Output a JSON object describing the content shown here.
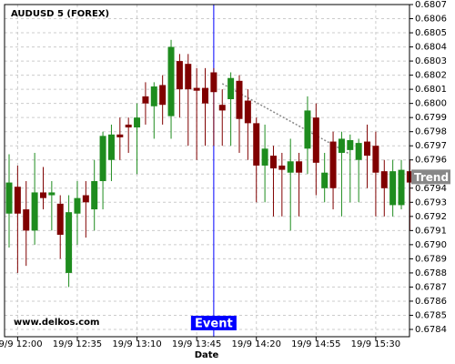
{
  "chart_data": {
    "type": "candlestick",
    "title": "AUDUSD 5 (FOREX)",
    "watermark": "www.delkos.com",
    "x_label": "Date",
    "categories": [
      null,
      "19/9 12:00",
      null,
      null,
      null,
      null,
      null,
      null,
      "19/9 12:35",
      null,
      null,
      null,
      null,
      null,
      null,
      "19/9 13:10",
      null,
      null,
      null,
      null,
      null,
      null,
      "19/9 13:45",
      null,
      null,
      null,
      null,
      null,
      null,
      "19/9 14:20",
      null,
      null,
      null,
      null,
      null,
      null,
      "19/9 14:55",
      null,
      null,
      null,
      null,
      null,
      null,
      "19/9 15:30",
      null,
      null,
      null,
      null
    ],
    "open": [
      0.67922,
      0.67941,
      0.67925,
      0.6791,
      0.67937,
      0.67935,
      0.67929,
      0.6788,
      0.67922,
      0.67935,
      0.67925,
      0.67945,
      0.6796,
      0.67978,
      0.67985,
      0.67983,
      0.68005,
      0.67998,
      0.68013,
      0.67991,
      0.6803,
      0.68028,
      0.68011,
      0.68011,
      0.68022,
      0.67999,
      0.68003,
      0.68016,
      0.68002,
      0.67986,
      0.67956,
      0.67963,
      0.67956,
      0.67951,
      0.67959,
      0.67968,
      0.6799,
      0.6794,
      0.67973,
      0.67965,
      0.67967,
      0.6796,
      0.67973,
      0.6797,
      0.67952,
      0.67928,
      0.67928,
      0.67952
    ],
    "high": [
      0.67964,
      0.67956,
      0.67945,
      0.67965,
      0.67955,
      0.67945,
      0.67935,
      0.67935,
      0.67945,
      0.67945,
      0.6796,
      0.6798,
      0.67985,
      0.6799,
      0.6799,
      0.68,
      0.68015,
      0.68015,
      0.6802,
      0.68045,
      0.68035,
      0.68035,
      0.68025,
      0.68025,
      0.68025,
      0.6801,
      0.68022,
      0.6802,
      0.6801,
      0.6799,
      0.67985,
      0.6797,
      0.67965,
      0.67975,
      0.67965,
      0.68005,
      0.68,
      0.67965,
      0.6798,
      0.6798,
      0.67978,
      0.67975,
      0.67985,
      0.6798,
      0.6796,
      0.6796,
      0.6796,
      0.6796
    ],
    "low": [
      0.67898,
      0.6788,
      0.67885,
      0.679,
      0.67925,
      0.6791,
      0.6789,
      0.6787,
      0.679,
      0.67905,
      0.6791,
      0.67925,
      0.67945,
      0.6796,
      0.67965,
      0.6795,
      0.67985,
      0.67975,
      0.67985,
      0.67975,
      0.6799,
      0.6797,
      0.6796,
      0.6797,
      0.6797,
      0.6797,
      0.6797,
      0.67965,
      0.6796,
      0.6793,
      0.6793,
      0.6792,
      0.6792,
      0.6791,
      0.6792,
      0.6795,
      0.67935,
      0.6793,
      0.67925,
      0.6792,
      0.6793,
      0.6793,
      0.6794,
      0.6792,
      0.6792,
      0.6792,
      0.67925,
      0.6791
    ],
    "close": [
      0.67944,
      0.67922,
      0.6791,
      0.67937,
      0.67933,
      0.67937,
      0.67907,
      0.67923,
      0.67933,
      0.6793,
      0.67945,
      0.67977,
      0.67978,
      0.67976,
      0.67983,
      0.6799,
      0.68,
      0.68012,
      0.67999,
      0.6804,
      0.6801,
      0.6801,
      0.68009,
      0.68,
      0.68008,
      0.67995,
      0.68018,
      0.67989,
      0.67986,
      0.67956,
      0.67968,
      0.67954,
      0.67953,
      0.67959,
      0.67951,
      0.67995,
      0.67958,
      0.67951,
      0.6794,
      0.67975,
      0.67974,
      0.67972,
      0.67963,
      0.67951,
      0.6794,
      0.67952,
      0.67953,
      0.67944
    ],
    "up_color": "#1e8c1e",
    "down_color": "#800000",
    "ylim": [
      0.6784,
      0.6807
    ],
    "yticks": [
      0.6784,
      0.6785,
      0.6786,
      0.6787,
      0.6788,
      0.6789,
      {
        "value": 0.679,
        "label": "0.6790"
      },
      0.6791,
      0.6792,
      0.6793,
      0.6794,
      0.6795,
      0.6796,
      0.6797,
      0.6798,
      0.6799,
      {
        "value": 0.68,
        "label": "0.6800"
      },
      0.6801,
      0.6802,
      0.6803,
      0.6804,
      0.6805,
      0.6806,
      0.6807
    ],
    "grid": true,
    "event": {
      "label": "Event",
      "index": 24,
      "color": "#0000ff"
    },
    "trend": {
      "label": "Trend",
      "value": 0.67948,
      "points": [
        {
          "x": 25,
          "y": 0.68014
        },
        {
          "x": 40,
          "y": 0.67964
        }
      ]
    }
  }
}
